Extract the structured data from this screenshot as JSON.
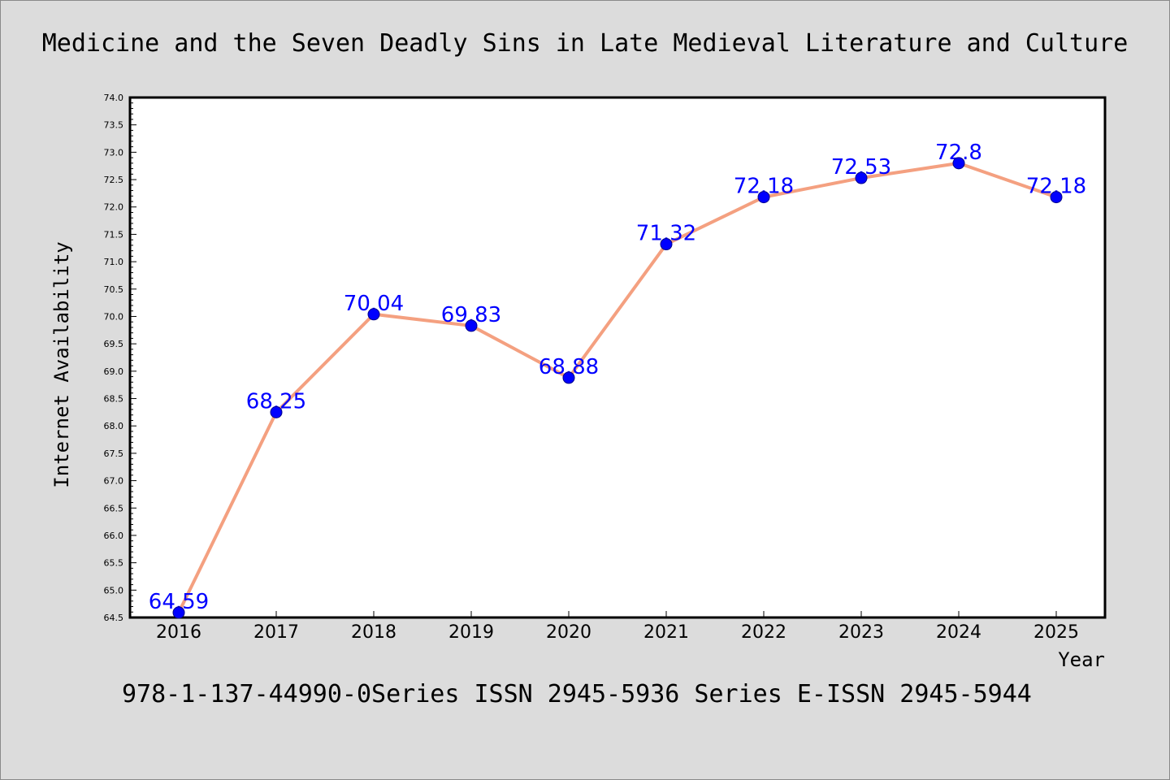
{
  "chart_data": {
    "type": "line",
    "title": "Medicine and the Seven Deadly Sins in Late Medieval Literature and Culture",
    "xlabel": "Year",
    "ylabel": "Internet Availability",
    "categories": [
      "2016",
      "2017",
      "2018",
      "2019",
      "2020",
      "2021",
      "2022",
      "2023",
      "2024",
      "2025"
    ],
    "values": [
      64.59,
      68.25,
      70.04,
      69.83,
      68.88,
      71.32,
      72.18,
      72.53,
      72.8,
      72.18
    ],
    "ylim": [
      64.5,
      74.0
    ],
    "yticks": [
      "64.5",
      "65.0",
      "65.5",
      "66.0",
      "66.5",
      "67.0",
      "67.5",
      "68.0",
      "68.5",
      "69.0",
      "69.5",
      "70.0",
      "70.5",
      "71.0",
      "71.5",
      "72.0",
      "72.5",
      "73.0",
      "73.5",
      "74.0"
    ],
    "grid": false,
    "data_labels": true,
    "colors": {
      "background": "#dcdcdc",
      "plot_background": "#ffffff",
      "line": "#f4a080",
      "marker": "#0000ff",
      "marker_edge": "#00008b",
      "data_label": "#0000ff",
      "axis": "#000000"
    }
  },
  "footer": "978-1-137-44990-0Series ISSN 2945-5936 Series E-ISSN 2945-5944"
}
